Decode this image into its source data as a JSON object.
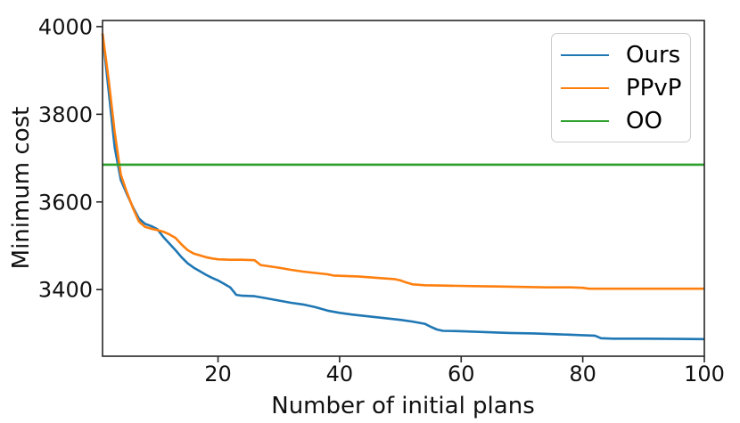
{
  "chart_data": {
    "type": "line",
    "title": "",
    "xlabel": "Number of initial plans",
    "ylabel": "Minimum cost",
    "xlim": [
      1,
      100
    ],
    "ylim": [
      3248,
      4014
    ],
    "xticks": [
      20,
      40,
      60,
      80,
      100
    ],
    "yticks": [
      3400,
      3600,
      3800,
      4000
    ],
    "grid": false,
    "legend_position": "upper right",
    "series": [
      {
        "name": "Ours",
        "color": "#1f77b4",
        "points": [
          [
            1,
            3983
          ],
          [
            2,
            3855
          ],
          [
            3,
            3725
          ],
          [
            4,
            3650
          ],
          [
            5,
            3618
          ],
          [
            6,
            3588
          ],
          [
            7,
            3562
          ],
          [
            8,
            3550
          ],
          [
            9,
            3545
          ],
          [
            10,
            3538
          ],
          [
            11,
            3520
          ],
          [
            12,
            3505
          ],
          [
            13,
            3490
          ],
          [
            14,
            3474
          ],
          [
            15,
            3460
          ],
          [
            16,
            3450
          ],
          [
            17,
            3442
          ],
          [
            18,
            3434
          ],
          [
            19,
            3427
          ],
          [
            20,
            3421
          ],
          [
            21,
            3413
          ],
          [
            22,
            3405
          ],
          [
            23,
            3388
          ],
          [
            24,
            3386
          ],
          [
            26,
            3385
          ],
          [
            28,
            3380
          ],
          [
            30,
            3375
          ],
          [
            32,
            3370
          ],
          [
            34,
            3366
          ],
          [
            36,
            3360
          ],
          [
            38,
            3352
          ],
          [
            40,
            3347
          ],
          [
            42,
            3343
          ],
          [
            44,
            3340
          ],
          [
            46,
            3337
          ],
          [
            48,
            3334
          ],
          [
            50,
            3331
          ],
          [
            52,
            3327
          ],
          [
            54,
            3322
          ],
          [
            55,
            3315
          ],
          [
            56,
            3309
          ],
          [
            57,
            3306
          ],
          [
            60,
            3305
          ],
          [
            64,
            3303
          ],
          [
            68,
            3301
          ],
          [
            72,
            3300
          ],
          [
            76,
            3298
          ],
          [
            80,
            3296
          ],
          [
            82,
            3295
          ],
          [
            83,
            3289
          ],
          [
            85,
            3288
          ],
          [
            90,
            3288
          ],
          [
            100,
            3287
          ]
        ]
      },
      {
        "name": "PPvP",
        "color": "#ff7f0e",
        "points": [
          [
            1,
            3985
          ],
          [
            2,
            3880
          ],
          [
            3,
            3760
          ],
          [
            4,
            3662
          ],
          [
            5,
            3622
          ],
          [
            6,
            3586
          ],
          [
            7,
            3555
          ],
          [
            8,
            3543
          ],
          [
            9,
            3539
          ],
          [
            10,
            3536
          ],
          [
            11,
            3532
          ],
          [
            12,
            3526
          ],
          [
            13,
            3518
          ],
          [
            14,
            3503
          ],
          [
            15,
            3490
          ],
          [
            16,
            3482
          ],
          [
            17,
            3478
          ],
          [
            18,
            3474
          ],
          [
            19,
            3471
          ],
          [
            20,
            3469
          ],
          [
            22,
            3468
          ],
          [
            24,
            3468
          ],
          [
            26,
            3467
          ],
          [
            27,
            3456
          ],
          [
            28,
            3454
          ],
          [
            30,
            3450
          ],
          [
            32,
            3445
          ],
          [
            34,
            3441
          ],
          [
            36,
            3438
          ],
          [
            38,
            3435
          ],
          [
            39,
            3432
          ],
          [
            41,
            3431
          ],
          [
            43,
            3430
          ],
          [
            45,
            3428
          ],
          [
            47,
            3426
          ],
          [
            49,
            3424
          ],
          [
            50,
            3421
          ],
          [
            51,
            3416
          ],
          [
            52,
            3412
          ],
          [
            54,
            3410
          ],
          [
            58,
            3409
          ],
          [
            62,
            3408
          ],
          [
            66,
            3407
          ],
          [
            70,
            3406
          ],
          [
            74,
            3405
          ],
          [
            78,
            3405
          ],
          [
            80,
            3404
          ],
          [
            81,
            3402
          ],
          [
            85,
            3402
          ],
          [
            90,
            3402
          ],
          [
            100,
            3402
          ]
        ]
      },
      {
        "name": "OO",
        "color": "#2ca02c",
        "points": [
          [
            1,
            3685
          ],
          [
            100,
            3685
          ]
        ]
      }
    ]
  },
  "styles": {
    "axis_color": "#262626",
    "text_color": "#111111",
    "legend_border": "#cccccc",
    "background": "#ffffff"
  }
}
